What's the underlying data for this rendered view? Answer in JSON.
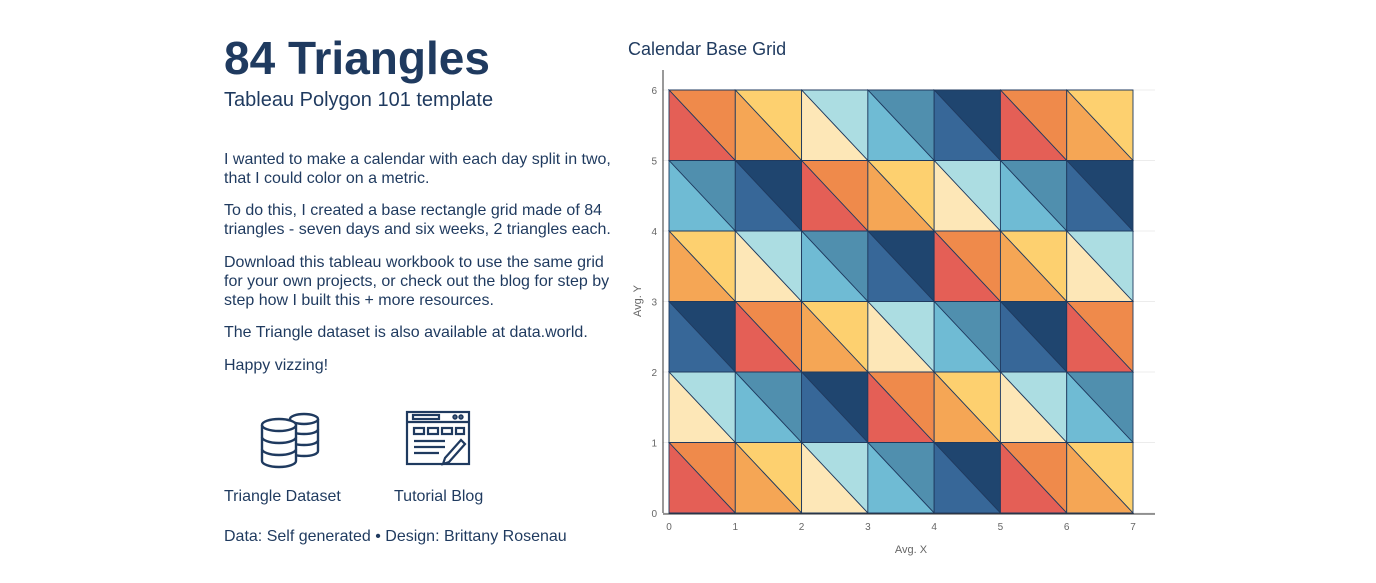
{
  "header": {
    "title": "84 Triangles",
    "subtitle": "Tableau Polygon 101 template"
  },
  "body": {
    "p1": "I wanted to make a calendar with each day split in two, that I could color on a metric.",
    "p2": "To do this, I created a base rectangle grid made of 84 triangles - seven days and six weeks, 2 triangles each.",
    "p3": "Download this tableau workbook to use the same grid for your own projects, or check out the blog for step by step how I built this + more resources.",
    "p4": "The Triangle dataset is also available at data.world.",
    "p5": "Happy vizzing!"
  },
  "links": {
    "dataset": {
      "label": "Triangle Dataset",
      "icon": "database-icon"
    },
    "blog": {
      "label": "Tutorial Blog",
      "icon": "browser-window-icon"
    }
  },
  "footer": "Data: Self generated • Design: Brittany Rosenau",
  "colors": {
    "red": "#e45f56",
    "orange": "#ef8a4b",
    "peach": "#f5a655",
    "yellow": "#fdd06f",
    "cream": "#fde7b7",
    "lightblue": "#acdde2",
    "skyblue": "#6fbbd4",
    "steel": "#508fae",
    "blue": "#376798",
    "navy": "#1f456f",
    "ink": "#1f3a5f"
  },
  "chart_data": {
    "type": "polygon",
    "title": "Calendar Base Grid",
    "xlabel": "Avg. X",
    "ylabel": "Avg. Y",
    "xlim": [
      0,
      7
    ],
    "ylim": [
      0,
      6
    ],
    "xticks": [
      0,
      1,
      2,
      3,
      4,
      5,
      6,
      7
    ],
    "yticks": [
      0,
      1,
      2,
      3,
      4,
      5,
      6
    ],
    "grid": true,
    "cells": [
      [
        [
          "orange",
          "red"
        ],
        [
          "yellow",
          "peach"
        ],
        [
          "lightblue",
          "cream"
        ],
        [
          "steel",
          "skyblue"
        ],
        [
          "navy",
          "blue"
        ],
        [
          "orange",
          "red"
        ],
        [
          "yellow",
          "peach"
        ]
      ],
      [
        [
          "lightblue",
          "cream"
        ],
        [
          "steel",
          "skyblue"
        ],
        [
          "navy",
          "blue"
        ],
        [
          "orange",
          "red"
        ],
        [
          "yellow",
          "peach"
        ],
        [
          "lightblue",
          "cream"
        ],
        [
          "steel",
          "skyblue"
        ]
      ],
      [
        [
          "navy",
          "blue"
        ],
        [
          "orange",
          "red"
        ],
        [
          "yellow",
          "peach"
        ],
        [
          "lightblue",
          "cream"
        ],
        [
          "steel",
          "skyblue"
        ],
        [
          "navy",
          "blue"
        ],
        [
          "orange",
          "red"
        ]
      ],
      [
        [
          "yellow",
          "peach"
        ],
        [
          "lightblue",
          "cream"
        ],
        [
          "steel",
          "skyblue"
        ],
        [
          "navy",
          "blue"
        ],
        [
          "orange",
          "red"
        ],
        [
          "yellow",
          "peach"
        ],
        [
          "lightblue",
          "cream"
        ]
      ],
      [
        [
          "steel",
          "skyblue"
        ],
        [
          "navy",
          "blue"
        ],
        [
          "orange",
          "red"
        ],
        [
          "yellow",
          "peach"
        ],
        [
          "lightblue",
          "cream"
        ],
        [
          "steel",
          "skyblue"
        ],
        [
          "navy",
          "blue"
        ]
      ],
      [
        [
          "orange",
          "red"
        ],
        [
          "yellow",
          "peach"
        ],
        [
          "lightblue",
          "cream"
        ],
        [
          "steel",
          "skyblue"
        ],
        [
          "navy",
          "blue"
        ],
        [
          "orange",
          "red"
        ],
        [
          "yellow",
          "peach"
        ]
      ]
    ]
  }
}
